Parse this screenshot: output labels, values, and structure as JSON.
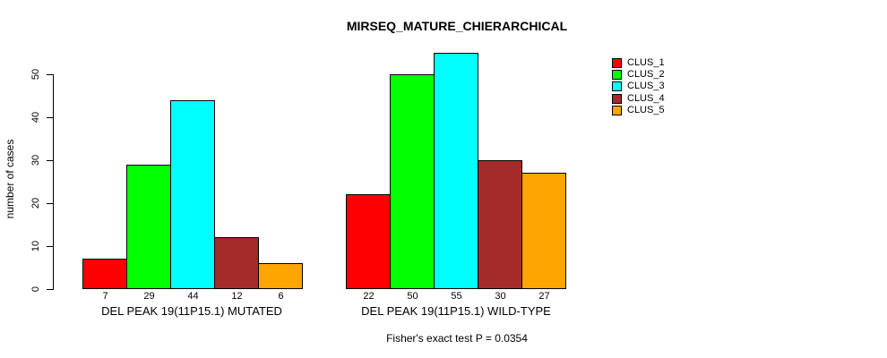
{
  "chart_data": {
    "type": "bar",
    "title": "MIRSEQ_MATURE_CHIERARCHICAL",
    "xlabel": "",
    "ylabel": "number of cases",
    "categories": [
      "DEL PEAK 19(11P15.1) MUTATED",
      "DEL PEAK 19(11P15.1) WILD-TYPE"
    ],
    "series": [
      {
        "name": "CLUS_1",
        "color": "#FF0000",
        "values": [
          7,
          22
        ]
      },
      {
        "name": "CLUS_2",
        "color": "#00FF00",
        "values": [
          29,
          50
        ]
      },
      {
        "name": "CLUS_3",
        "color": "#00FFFF",
        "values": [
          44,
          55
        ]
      },
      {
        "name": "CLUS_4",
        "color": "#A52A2A",
        "values": [
          12,
          30
        ]
      },
      {
        "name": "CLUS_5",
        "color": "#FFA500",
        "values": [
          6,
          27
        ]
      }
    ],
    "bar_value_labels": [
      [
        7,
        29,
        44,
        12,
        6
      ],
      [
        22,
        50,
        55,
        30,
        27
      ]
    ],
    "yticks": [
      0,
      10,
      20,
      30,
      40,
      50
    ],
    "ylim": [
      0,
      55
    ],
    "grid": false,
    "legend_position": "right-outside",
    "annotation": "Fisher's exact test P = 0.0354"
  }
}
